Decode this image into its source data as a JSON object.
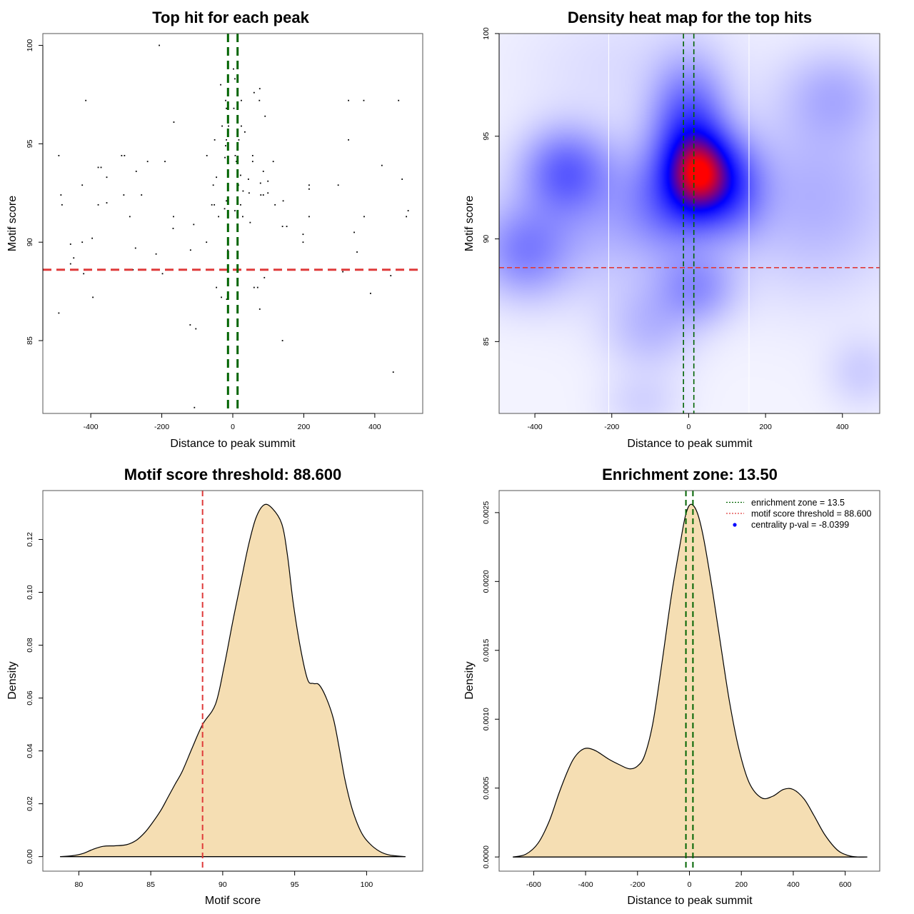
{
  "colors": {
    "threshold_line": "#DF3A3A",
    "enrichment_line": "#006400",
    "density_fill": "#F5DEB3",
    "density_line": "#000000",
    "heat_low": "#FFFFFF",
    "heat_mid": "#0000FF",
    "heat_high": "#FF0000",
    "centrality_point": "#0000FF"
  },
  "chart_data": [
    {
      "id": "scatter",
      "type": "scatter",
      "title": "Top hit for each peak",
      "xlabel": "Distance to peak summit",
      "ylabel": "Motif score",
      "xlim": [
        -535,
        535
      ],
      "ylim": [
        81.3,
        100.6
      ],
      "xticks": [
        -400,
        -200,
        0,
        200,
        400
      ],
      "xtick_labels": [
        "-400",
        "-200",
        "0",
        "200",
        "400"
      ],
      "yticks": [
        85,
        90,
        95,
        100
      ],
      "ytick_labels": [
        "85",
        "90",
        "95",
        "100"
      ],
      "threshold_y": 88.6,
      "enrichment_zone": [
        -13.5,
        13.5
      ],
      "points": [
        [
          -207,
          100.0
        ],
        [
          -414,
          97.2
        ],
        [
          -166,
          96.1
        ],
        [
          -490,
          94.4
        ],
        [
          -313,
          94.4
        ],
        [
          -305,
          94.4
        ],
        [
          -240,
          94.1
        ],
        [
          -191,
          94.1
        ],
        [
          -379,
          93.8
        ],
        [
          -371,
          93.8
        ],
        [
          -355,
          93.3
        ],
        [
          -272,
          93.6
        ],
        [
          -424,
          92.9
        ],
        [
          -484,
          92.4
        ],
        [
          -307,
          92.4
        ],
        [
          -257,
          92.4
        ],
        [
          -481,
          91.9
        ],
        [
          -379,
          91.9
        ],
        [
          -355,
          92.0
        ],
        [
          -290,
          91.3
        ],
        [
          -167,
          91.3
        ],
        [
          -168,
          90.7
        ],
        [
          -457,
          89.9
        ],
        [
          -424,
          90.0
        ],
        [
          -396,
          90.2
        ],
        [
          -448,
          89.2
        ],
        [
          -274,
          89.7
        ],
        [
          -216,
          89.4
        ],
        [
          -119,
          89.6
        ],
        [
          -457,
          88.9
        ],
        [
          -420,
          88.4
        ],
        [
          -281,
          88.6
        ],
        [
          -198,
          88.4
        ],
        [
          -394,
          87.2
        ],
        [
          -490,
          86.4
        ],
        [
          -120,
          85.8
        ],
        [
          -104,
          85.6
        ],
        [
          -108,
          81.6
        ],
        [
          -110,
          90.9
        ],
        [
          -34,
          98.0
        ],
        [
          -20,
          97.2
        ],
        [
          -18,
          96.8
        ],
        [
          -12,
          95.9
        ],
        [
          -30,
          95.9
        ],
        [
          -14,
          95.5
        ],
        [
          -51,
          95.2
        ],
        [
          -18,
          95.2
        ],
        [
          -20,
          94.9
        ],
        [
          -73,
          94.4
        ],
        [
          -22,
          94.3
        ],
        [
          -46,
          93.3
        ],
        [
          -55,
          92.9
        ],
        [
          -14,
          93.6
        ],
        [
          -18,
          92.1
        ],
        [
          -59,
          91.9
        ],
        [
          -52,
          91.9
        ],
        [
          -23,
          91.7
        ],
        [
          -40,
          91.3
        ],
        [
          -74,
          90.0
        ],
        [
          -14,
          89.6
        ],
        [
          -46,
          87.7
        ],
        [
          -32,
          87.2
        ],
        [
          -17,
          87.1
        ],
        [
          2,
          98.8
        ],
        [
          6,
          98.3
        ],
        [
          24,
          97.2
        ],
        [
          3,
          96.8
        ],
        [
          60,
          97.6
        ],
        [
          24,
          95.9
        ],
        [
          17,
          95.2
        ],
        [
          34,
          95.6
        ],
        [
          7,
          94.4
        ],
        [
          10,
          94.1
        ],
        [
          22,
          93.4
        ],
        [
          44,
          93.2
        ],
        [
          16,
          92.9
        ],
        [
          29,
          92.6
        ],
        [
          13,
          92.1
        ],
        [
          22,
          91.9
        ],
        [
          46,
          92.5
        ],
        [
          6,
          91.6
        ],
        [
          28,
          91.3
        ],
        [
          49,
          91.0
        ],
        [
          76,
          97.8
        ],
        [
          75,
          97.2
        ],
        [
          91,
          96.4
        ],
        [
          99,
          93.1
        ],
        [
          56,
          94.4
        ],
        [
          56,
          94.1
        ],
        [
          78,
          93.0
        ],
        [
          86,
          93.6
        ],
        [
          79,
          92.4
        ],
        [
          86,
          92.4
        ],
        [
          99,
          92.5
        ],
        [
          114,
          94.1
        ],
        [
          119,
          91.9
        ],
        [
          142,
          92.1
        ],
        [
          152,
          90.8
        ],
        [
          70,
          87.7
        ],
        [
          76,
          86.6
        ],
        [
          60,
          87.7
        ],
        [
          89,
          88.2
        ],
        [
          140,
          85.0
        ],
        [
          140,
          90.8
        ],
        [
          198,
          90.4
        ],
        [
          198,
          90.0
        ],
        [
          215,
          92.9
        ],
        [
          215,
          92.7
        ],
        [
          215,
          91.3
        ],
        [
          297,
          92.9
        ],
        [
          310,
          88.5
        ],
        [
          326,
          97.2
        ],
        [
          326,
          95.2
        ],
        [
          342,
          90.5
        ],
        [
          350,
          89.5
        ],
        [
          369,
          97.2
        ],
        [
          370,
          91.3
        ],
        [
          388,
          87.4
        ],
        [
          420,
          93.9
        ],
        [
          445,
          88.3
        ],
        [
          452,
          83.4
        ],
        [
          467,
          97.2
        ],
        [
          477,
          93.2
        ],
        [
          489,
          91.3
        ],
        [
          494,
          91.6
        ]
      ]
    },
    {
      "id": "heatmap",
      "type": "heatmap",
      "title": "Density heat map for the top hits",
      "xlabel": "Distance to peak summit",
      "ylabel": "Motif score",
      "xlim": [
        -493,
        497
      ],
      "ylim": [
        81.5,
        100.0
      ],
      "xticks": [
        -400,
        -200,
        0,
        200,
        400
      ],
      "xtick_labels": [
        "-400",
        "-200",
        "0",
        "200",
        "400"
      ],
      "yticks": [
        85,
        90,
        95,
        100
      ],
      "ytick_labels": [
        "85",
        "90",
        "95",
        "100"
      ],
      "threshold_y": 88.6,
      "enrichment_zone": [
        -13.5,
        13.5
      ],
      "white_vlines": [
        -208,
        157
      ],
      "density_blobs": [
        {
          "x": 30,
          "y": 93.2,
          "sx": 55,
          "sy": 1.3,
          "w": 1.0
        },
        {
          "x": 0,
          "y": 95.5,
          "sx": 65,
          "sy": 2.0,
          "w": 0.55
        },
        {
          "x": -30,
          "y": 92.0,
          "sx": 90,
          "sy": 1.8,
          "w": 0.45
        },
        {
          "x": 120,
          "y": 92.5,
          "sx": 60,
          "sy": 1.6,
          "w": 0.4
        },
        {
          "x": -320,
          "y": 93.3,
          "sx": 75,
          "sy": 1.4,
          "w": 0.42
        },
        {
          "x": -430,
          "y": 89.4,
          "sx": 80,
          "sy": 1.5,
          "w": 0.32
        },
        {
          "x": -250,
          "y": 91.0,
          "sx": 150,
          "sy": 2.5,
          "w": 0.18
        },
        {
          "x": 20,
          "y": 87.6,
          "sx": 70,
          "sy": 1.2,
          "w": 0.28
        },
        {
          "x": -100,
          "y": 85.7,
          "sx": 80,
          "sy": 1.5,
          "w": 0.16
        },
        {
          "x": 380,
          "y": 97.0,
          "sx": 90,
          "sy": 1.5,
          "w": 0.18
        },
        {
          "x": 330,
          "y": 92.0,
          "sx": 150,
          "sy": 3.0,
          "w": 0.2
        },
        {
          "x": 450,
          "y": 83.5,
          "sx": 60,
          "sy": 1.2,
          "w": 0.1
        },
        {
          "x": -120,
          "y": 82.0,
          "sx": 70,
          "sy": 1.0,
          "w": 0.08
        },
        {
          "x": -150,
          "y": 98.5,
          "sx": 200,
          "sy": 2.0,
          "w": 0.06
        }
      ]
    },
    {
      "id": "score_density",
      "type": "area",
      "title": "Motif score threshold: 88.600",
      "xlabel": "Motif score",
      "ylabel": "Density",
      "xlim": [
        77.5,
        103.9
      ],
      "ylim": [
        -0.0055,
        0.1385
      ],
      "xticks": [
        80,
        85,
        90,
        95,
        100
      ],
      "xtick_labels": [
        "80",
        "85",
        "90",
        "95",
        "100"
      ],
      "yticks": [
        0.0,
        0.02,
        0.04,
        0.06,
        0.08,
        0.1,
        0.12
      ],
      "ytick_labels": [
        "0.00",
        "0.02",
        "0.04",
        "0.06",
        "0.08",
        "0.10",
        "0.12"
      ],
      "threshold_x": 88.6,
      "x": [
        78.7,
        79.5,
        80.3,
        81.0,
        81.7,
        82.5,
        83.3,
        84.0,
        84.6,
        85.1,
        85.7,
        86.2,
        86.7,
        87.2,
        87.9,
        88.6,
        89.5,
        90.1,
        90.7,
        91.3,
        91.8,
        92.3,
        92.85,
        93.4,
        94.1,
        94.5,
        94.9,
        95.4,
        95.9,
        96.3,
        96.7,
        97.2,
        97.7,
        98.1,
        98.5,
        99.0,
        99.6,
        100.2,
        100.9,
        101.6,
        102.7
      ],
      "y": [
        0.0,
        0.0003,
        0.0012,
        0.0028,
        0.0039,
        0.0041,
        0.0045,
        0.0062,
        0.0092,
        0.0127,
        0.0175,
        0.0225,
        0.0275,
        0.0324,
        0.0414,
        0.05,
        0.0577,
        0.072,
        0.089,
        0.105,
        0.118,
        0.128,
        0.133,
        0.132,
        0.126,
        0.114,
        0.096,
        0.079,
        0.067,
        0.0655,
        0.065,
        0.06,
        0.052,
        0.041,
        0.029,
        0.018,
        0.0095,
        0.005,
        0.002,
        0.0006,
        0.0
      ]
    },
    {
      "id": "distance_density",
      "type": "area",
      "title": "Enrichment zone: 13.50",
      "xlabel": "Distance to peak summit",
      "ylabel": "Density",
      "xlim": [
        -733,
        733
      ],
      "ylim": [
        -0.000103,
        0.00266
      ],
      "xticks": [
        -600,
        -400,
        -200,
        0,
        200,
        400,
        600
      ],
      "xtick_labels": [
        "-600",
        "-400",
        "-200",
        "0",
        "200",
        "400",
        "600"
      ],
      "yticks": [
        0.0,
        0.0005,
        0.001,
        0.0015,
        0.002,
        0.0025
      ],
      "ytick_labels": [
        "0.0000",
        "0.0005",
        "0.0010",
        "0.0015",
        "0.0020",
        "0.0025"
      ],
      "enrichment_zone": [
        -13.5,
        13.5
      ],
      "x": [
        -680,
        -630,
        -583,
        -540,
        -503,
        -470,
        -447,
        -420,
        -394,
        -360,
        -311,
        -270,
        -231,
        -200,
        -172,
        -140,
        -105,
        -70,
        -36,
        -15,
        5,
        30,
        55,
        90,
        122,
        155,
        191,
        230,
        277,
        320,
        362,
        400,
        442,
        480,
        522,
        570,
        613,
        650,
        685
      ],
      "y": [
        0.0,
        2e-05,
        0.0001,
        0.00026,
        0.00046,
        0.00062,
        0.00071,
        0.00077,
        0.00079,
        0.00077,
        0.00071,
        0.00067,
        0.00064,
        0.00066,
        0.00074,
        0.00098,
        0.00142,
        0.00189,
        0.00227,
        0.00248,
        0.00256,
        0.0025,
        0.00231,
        0.00192,
        0.00152,
        0.00112,
        0.00078,
        0.00054,
        0.00043,
        0.00044,
        0.00049,
        0.00049,
        0.00042,
        0.0003,
        0.00016,
        5e-05,
        1e-05,
        0.0,
        0.0
      ],
      "legend": {
        "position": "top-right",
        "items": [
          {
            "label": "enrichment zone = 13.5",
            "symbol": "dotted-line",
            "color": "#006400"
          },
          {
            "label": "motif score threshold = 88.600",
            "symbol": "dotted-line",
            "color": "#DF3A3A"
          },
          {
            "label": "centrality p-val = -8.0399",
            "symbol": "point",
            "color": "#0000FF"
          }
        ]
      }
    }
  ]
}
